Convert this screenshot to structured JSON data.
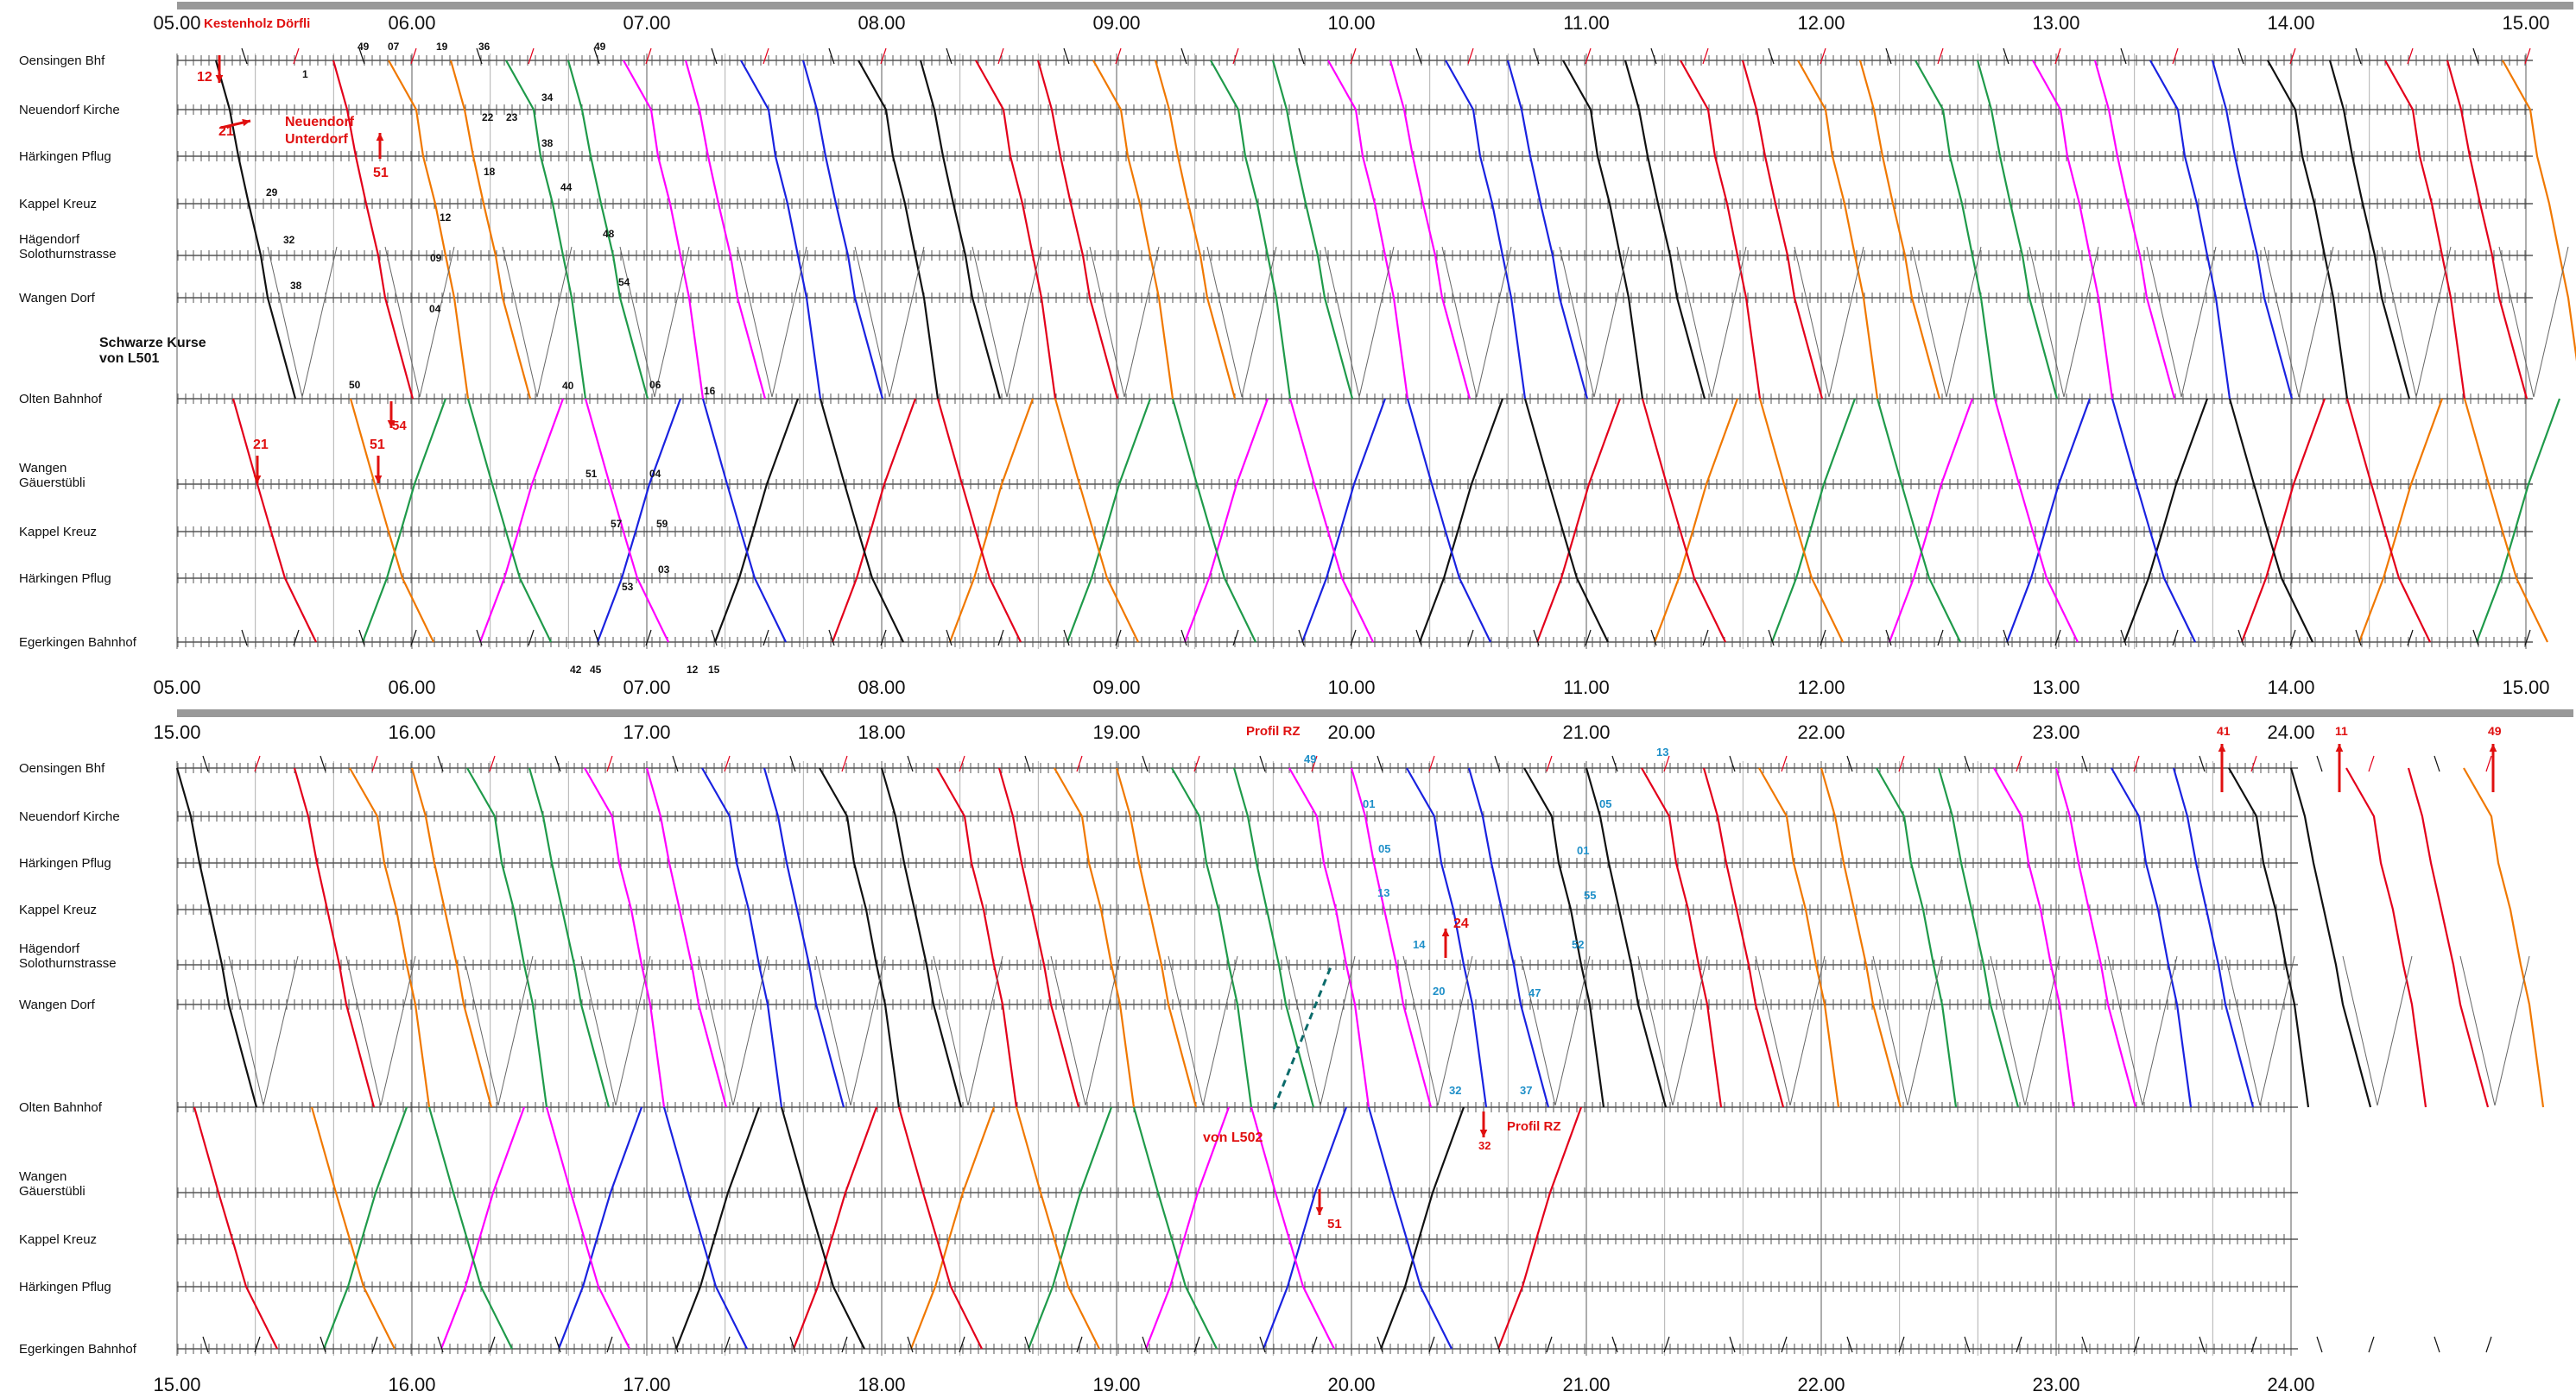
{
  "colors": {
    "black": "#111111",
    "red": "#e3001b",
    "orange": "#f07800",
    "green": "#1f9a4a",
    "magenta": "#ff00ff",
    "blue": "#1a22e0",
    "gray": "#666666",
    "cyan": "#1e8fc8",
    "annotation_red": "#e01010",
    "separator": "#999999"
  },
  "panels": [
    {
      "id": "morning",
      "hours": [
        "05.00",
        "06.00",
        "07.00",
        "08.00",
        "09.00",
        "10.00",
        "11.00",
        "12.00",
        "13.00",
        "14.00",
        "15.00"
      ],
      "stations": [
        {
          "name": "Oensingen Bhf"
        },
        {
          "name": "Neuendorf Kirche"
        },
        {
          "name": "Härkingen Pflug"
        },
        {
          "name": "Kappel Kreuz"
        },
        {
          "name": "Hägendorf",
          "name2": "Solothurnstrasse"
        },
        {
          "name": "Wangen Dorf"
        },
        {
          "name": "Olten Bahnhof"
        },
        {
          "name": "Wangen",
          "name2": "Gäuerstübli"
        },
        {
          "name": "Kappel Kreuz"
        },
        {
          "name": "Härkingen Pflug"
        },
        {
          "name": "Egerkingen Bahnhof"
        }
      ],
      "note": [
        "Schwarze Kurse",
        "von L501"
      ],
      "red_labels": [
        "Kestenholz Dörfli",
        "12",
        "21",
        "Neuendorf",
        "Unterdorf",
        "51",
        "54",
        "21",
        "51"
      ],
      "black_labels": [
        "1",
        "49",
        "07",
        "19",
        "36",
        "49",
        "22",
        "23",
        "34",
        "38",
        "18",
        "29",
        "12",
        "44",
        "32",
        "48",
        "09",
        "54",
        "38",
        "04",
        "50",
        "40",
        "06",
        "16",
        "51",
        "04",
        "57",
        "59",
        "03",
        "53",
        "42",
        "45",
        "12",
        "15"
      ]
    },
    {
      "id": "evening",
      "hours": [
        "15.00",
        "16.00",
        "17.00",
        "18.00",
        "19.00",
        "20.00",
        "21.00",
        "22.00",
        "23.00",
        "24.00"
      ],
      "stations": [
        {
          "name": "Oensingen Bhf"
        },
        {
          "name": "Neuendorf Kirche"
        },
        {
          "name": "Härkingen Pflug"
        },
        {
          "name": "Kappel Kreuz"
        },
        {
          "name": "Hägendorf",
          "name2": "Solothurnstrasse"
        },
        {
          "name": "Wangen Dorf"
        },
        {
          "name": "Olten Bahnhof"
        },
        {
          "name": "Wangen",
          "name2": "Gäuerstübli"
        },
        {
          "name": "Kappel Kreuz"
        },
        {
          "name": "Härkingen Pflug"
        },
        {
          "name": "Egerkingen Bahnhof"
        }
      ],
      "red_labels": [
        "Profil RZ",
        "24",
        "von L502",
        "51",
        "32",
        "Profil RZ",
        "41",
        "11",
        "49"
      ],
      "blue_labels": [
        "49",
        "13",
        "01",
        "05",
        "05",
        "01",
        "13",
        "55",
        "14",
        "52",
        "20",
        "47",
        "32",
        "37"
      ]
    }
  ]
}
